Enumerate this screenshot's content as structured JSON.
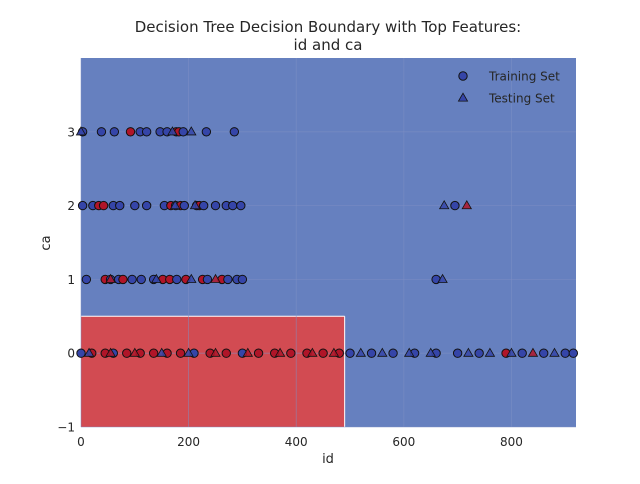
{
  "chart_data": {
    "type": "scatter",
    "title_lines": [
      "Decision Tree Decision Boundary with Top Features:",
      "id and ca"
    ],
    "xlabel": "id",
    "ylabel": "ca",
    "xlim": [
      0,
      920
    ],
    "ylim": [
      -1,
      4
    ],
    "xticks": [
      0,
      200,
      400,
      600,
      800
    ],
    "yticks": [
      -1,
      0,
      1,
      2,
      3
    ],
    "grid": true,
    "legend_position": "top-right",
    "colors": {
      "class0_region": "#6680bf",
      "class1_region": "#d24b52",
      "class0_point": "#3545a8",
      "class1_point": "#b01528",
      "grid": "#7f8fc4",
      "marker_edge": "#111111"
    },
    "regions": [
      {
        "class": 0,
        "x": [
          0,
          920
        ],
        "y": [
          -1,
          4
        ]
      },
      {
        "class": 1,
        "x": [
          0,
          490
        ],
        "y": [
          -1,
          0.5
        ]
      }
    ],
    "legend": [
      {
        "label": "Training Set",
        "marker": "circle"
      },
      {
        "label": "Testing Set",
        "marker": "triangle"
      }
    ],
    "series": [
      {
        "name": "Training Set",
        "marker": "circle",
        "points": [
          [
            3,
            3,
            0
          ],
          [
            38,
            3,
            0
          ],
          [
            62,
            3,
            0
          ],
          [
            92,
            3,
            1
          ],
          [
            110,
            3,
            0
          ],
          [
            122,
            3,
            0
          ],
          [
            147,
            3,
            0
          ],
          [
            160,
            3,
            0
          ],
          [
            177,
            3,
            1
          ],
          [
            182,
            3,
            1
          ],
          [
            190,
            3,
            0
          ],
          [
            233,
            3,
            0
          ],
          [
            285,
            3,
            0
          ],
          [
            3,
            2,
            0
          ],
          [
            22,
            2,
            0
          ],
          [
            33,
            2,
            1
          ],
          [
            42,
            2,
            1
          ],
          [
            60,
            2,
            0
          ],
          [
            72,
            2,
            0
          ],
          [
            100,
            2,
            0
          ],
          [
            122,
            2,
            0
          ],
          [
            155,
            2,
            0
          ],
          [
            167,
            2,
            1
          ],
          [
            176,
            2,
            0
          ],
          [
            185,
            2,
            1
          ],
          [
            192,
            2,
            0
          ],
          [
            215,
            2,
            0
          ],
          [
            220,
            2,
            1
          ],
          [
            228,
            2,
            0
          ],
          [
            250,
            2,
            0
          ],
          [
            270,
            2,
            0
          ],
          [
            282,
            2,
            0
          ],
          [
            297,
            2,
            0
          ],
          [
            695,
            2,
            0
          ],
          [
            10,
            1,
            0
          ],
          [
            45,
            1,
            1
          ],
          [
            55,
            1,
            0
          ],
          [
            70,
            1,
            0
          ],
          [
            78,
            1,
            1
          ],
          [
            95,
            1,
            0
          ],
          [
            112,
            1,
            0
          ],
          [
            135,
            1,
            0
          ],
          [
            152,
            1,
            1
          ],
          [
            165,
            1,
            1
          ],
          [
            178,
            1,
            0
          ],
          [
            195,
            1,
            1
          ],
          [
            226,
            1,
            1
          ],
          [
            235,
            1,
            0
          ],
          [
            262,
            1,
            1
          ],
          [
            273,
            1,
            0
          ],
          [
            290,
            1,
            0
          ],
          [
            300,
            1,
            0
          ],
          [
            660,
            1,
            0
          ],
          [
            0,
            0,
            0
          ],
          [
            20,
            0,
            1
          ],
          [
            45,
            0,
            1
          ],
          [
            60,
            0,
            0
          ],
          [
            85,
            0,
            1
          ],
          [
            110,
            0,
            1
          ],
          [
            135,
            0,
            1
          ],
          [
            160,
            0,
            1
          ],
          [
            185,
            0,
            1
          ],
          [
            210,
            0,
            0
          ],
          [
            240,
            0,
            1
          ],
          [
            270,
            0,
            1
          ],
          [
            300,
            0,
            0
          ],
          [
            330,
            0,
            1
          ],
          [
            360,
            0,
            1
          ],
          [
            390,
            0,
            1
          ],
          [
            420,
            0,
            1
          ],
          [
            450,
            0,
            1
          ],
          [
            480,
            0,
            1
          ],
          [
            500,
            0,
            0
          ],
          [
            540,
            0,
            0
          ],
          [
            580,
            0,
            0
          ],
          [
            620,
            0,
            0
          ],
          [
            660,
            0,
            0
          ],
          [
            700,
            0,
            0
          ],
          [
            740,
            0,
            0
          ],
          [
            790,
            0,
            1
          ],
          [
            820,
            0,
            0
          ],
          [
            860,
            0,
            0
          ],
          [
            900,
            0,
            0
          ],
          [
            915,
            0,
            0
          ]
        ]
      },
      {
        "name": "Testing Set",
        "marker": "triangle",
        "points": [
          [
            0,
            3,
            0
          ],
          [
            170,
            3,
            0
          ],
          [
            205,
            3,
            0
          ],
          [
            175,
            2,
            0
          ],
          [
            212,
            2,
            0
          ],
          [
            675,
            2,
            0
          ],
          [
            717,
            2,
            1
          ],
          [
            55,
            1,
            1
          ],
          [
            140,
            1,
            0
          ],
          [
            205,
            1,
            0
          ],
          [
            250,
            1,
            1
          ],
          [
            672,
            1,
            0
          ],
          [
            15,
            0,
            0
          ],
          [
            55,
            0,
            1
          ],
          [
            100,
            0,
            1
          ],
          [
            150,
            0,
            0
          ],
          [
            200,
            0,
            0
          ],
          [
            250,
            0,
            1
          ],
          [
            310,
            0,
            1
          ],
          [
            370,
            0,
            1
          ],
          [
            430,
            0,
            1
          ],
          [
            470,
            0,
            1
          ],
          [
            520,
            0,
            0
          ],
          [
            560,
            0,
            0
          ],
          [
            610,
            0,
            0
          ],
          [
            650,
            0,
            0
          ],
          [
            720,
            0,
            0
          ],
          [
            760,
            0,
            0
          ],
          [
            800,
            0,
            0
          ],
          [
            840,
            0,
            1
          ],
          [
            880,
            0,
            0
          ]
        ]
      }
    ]
  }
}
